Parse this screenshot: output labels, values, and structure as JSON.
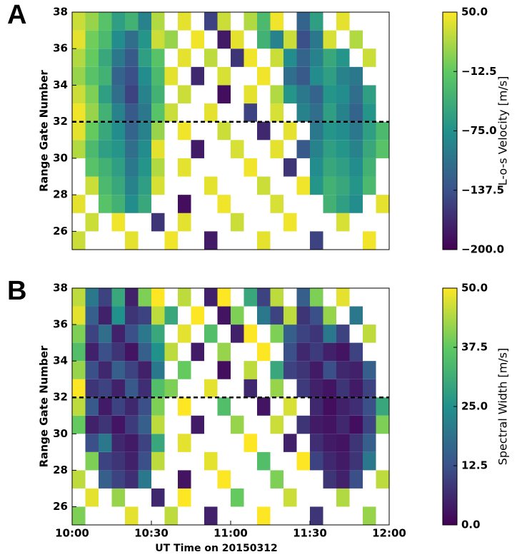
{
  "chart_data": [
    {
      "type": "heatmap",
      "panel_label": "A",
      "ylabel": "Range Gate Number",
      "colorbar_label": "L-o-s Velocity [m/s]",
      "colormap": "viridis",
      "clim": [
        -200,
        50
      ],
      "colorbar_ticks": [
        {
          "value": 50,
          "label": "50.0"
        },
        {
          "value": -12.5,
          "label": "−12.5"
        },
        {
          "value": -75,
          "label": "−75.0"
        },
        {
          "value": -137.5,
          "label": "−137.5"
        },
        {
          "value": -200,
          "label": "−200.0"
        }
      ],
      "xlim": [
        "10:00",
        "12:00"
      ],
      "ylim": [
        25,
        38
      ],
      "yticks": [
        26,
        28,
        30,
        32,
        34,
        36,
        38
      ],
      "hline": 32,
      "x": [
        "10:00",
        "10:05",
        "10:10",
        "10:15",
        "10:20",
        "10:25",
        "10:30",
        "10:35",
        "10:40",
        "10:45",
        "10:50",
        "10:55",
        "11:00",
        "11:05",
        "11:10",
        "11:15",
        "11:20",
        "11:25",
        "11:30",
        "11:35",
        "11:40",
        "11:45",
        "11:50",
        "11:55"
      ],
      "y": [
        25,
        26,
        27,
        28,
        29,
        30,
        31,
        32,
        33,
        34,
        35,
        36,
        37
      ],
      "z": [
        [
          30,
          null,
          null,
          null,
          40,
          null,
          null,
          45,
          null,
          null,
          -180,
          null,
          null,
          null,
          40,
          null,
          null,
          null,
          -150,
          null,
          null,
          null,
          45,
          null
        ],
        [
          null,
          30,
          null,
          45,
          null,
          null,
          -160,
          null,
          40,
          null,
          null,
          null,
          30,
          null,
          null,
          null,
          45,
          null,
          null,
          null,
          35,
          null,
          null,
          null
        ],
        [
          40,
          null,
          -20,
          -40,
          -80,
          -50,
          null,
          null,
          -190,
          null,
          null,
          45,
          null,
          null,
          null,
          35,
          null,
          null,
          null,
          -40,
          -60,
          -80,
          null,
          40
        ],
        [
          null,
          30,
          -30,
          -50,
          -90,
          -60,
          35,
          null,
          null,
          null,
          40,
          null,
          null,
          null,
          30,
          null,
          null,
          45,
          -70,
          -40,
          -50,
          -70,
          -30,
          null
        ],
        [
          null,
          -20,
          -40,
          -60,
          -100,
          -70,
          20,
          null,
          40,
          null,
          null,
          null,
          null,
          45,
          null,
          null,
          -160,
          null,
          -80,
          -50,
          -60,
          -80,
          -40,
          null
        ],
        [
          20,
          -30,
          -60,
          -70,
          -110,
          -80,
          40,
          null,
          null,
          -180,
          null,
          null,
          35,
          null,
          null,
          40,
          null,
          -130,
          -90,
          -60,
          -70,
          -90,
          -50,
          -20
        ],
        [
          40,
          -10,
          -50,
          -80,
          -120,
          -90,
          10,
          null,
          45,
          null,
          null,
          30,
          null,
          null,
          -170,
          null,
          40,
          null,
          -100,
          -70,
          -80,
          -100,
          -60,
          -30
        ],
        [
          45,
          10,
          -40,
          -90,
          -130,
          -100,
          -20,
          30,
          null,
          null,
          40,
          null,
          null,
          -150,
          null,
          35,
          null,
          -90,
          -110,
          -60,
          -90,
          -120,
          -70,
          null
        ],
        [
          30,
          0,
          -60,
          -110,
          -150,
          -90,
          -40,
          null,
          30,
          null,
          null,
          -190,
          null,
          40,
          null,
          20,
          -70,
          -100,
          -120,
          -70,
          -80,
          -110,
          -60,
          null
        ],
        [
          10,
          -20,
          -40,
          -120,
          -140,
          -80,
          -30,
          40,
          null,
          -170,
          null,
          35,
          null,
          null,
          45,
          null,
          -110,
          -130,
          -80,
          -60,
          -90,
          -100,
          null,
          null
        ],
        [
          20,
          -10,
          -50,
          -100,
          -130,
          -60,
          -20,
          null,
          40,
          null,
          25,
          null,
          -160,
          45,
          null,
          30,
          -80,
          -120,
          -90,
          -50,
          -70,
          null,
          30,
          null
        ],
        [
          40,
          -5,
          -30,
          -80,
          -110,
          -70,
          30,
          10,
          null,
          45,
          null,
          -180,
          40,
          null,
          -40,
          -90,
          30,
          -140,
          -100,
          35,
          null,
          20,
          null,
          null
        ],
        [
          30,
          10,
          -20,
          -60,
          -40,
          -90,
          20,
          null,
          40,
          null,
          -150,
          30,
          null,
          20,
          -30,
          45,
          null,
          -120,
          -60,
          null,
          40,
          null,
          null,
          null
        ]
      ]
    },
    {
      "type": "heatmap",
      "panel_label": "B",
      "ylabel": "Range Gate Number",
      "colorbar_label": "Spectral Width [m/s]",
      "xlabel": "UT Time on 20150312",
      "colormap": "viridis",
      "clim": [
        0,
        50
      ],
      "colorbar_ticks": [
        {
          "value": 50,
          "label": "50.0"
        },
        {
          "value": 37.5,
          "label": "37.5"
        },
        {
          "value": 25,
          "label": "25.0"
        },
        {
          "value": 12.5,
          "label": "12.5"
        },
        {
          "value": 0,
          "label": "0.0"
        }
      ],
      "xlim": [
        "10:00",
        "12:00"
      ],
      "xticks": [
        "10:00",
        "10:30",
        "11:00",
        "11:30",
        "12:00"
      ],
      "ylim": [
        25,
        38
      ],
      "yticks": [
        26,
        28,
        30,
        32,
        34,
        36,
        38
      ],
      "hline": 32,
      "x": [
        "10:00",
        "10:05",
        "10:10",
        "10:15",
        "10:20",
        "10:25",
        "10:30",
        "10:35",
        "10:40",
        "10:45",
        "10:50",
        "10:55",
        "11:00",
        "11:05",
        "11:10",
        "11:15",
        "11:20",
        "11:25",
        "11:30",
        "11:35",
        "11:40",
        "11:45",
        "11:50",
        "11:55"
      ],
      "y": [
        25,
        26,
        27,
        28,
        29,
        30,
        31,
        32,
        33,
        34,
        35,
        36,
        37
      ],
      "z": [
        [
          40,
          null,
          null,
          null,
          48,
          null,
          null,
          45,
          null,
          null,
          5,
          null,
          null,
          null,
          50,
          null,
          null,
          null,
          8,
          null,
          null,
          null,
          42,
          null
        ],
        [
          null,
          48,
          null,
          42,
          null,
          null,
          6,
          null,
          50,
          null,
          null,
          null,
          38,
          null,
          null,
          null,
          46,
          null,
          null,
          null,
          44,
          null,
          null,
          null
        ],
        [
          45,
          null,
          15,
          10,
          7,
          20,
          null,
          null,
          3,
          null,
          null,
          50,
          null,
          null,
          null,
          40,
          null,
          null,
          null,
          8,
          5,
          12,
          null,
          45
        ],
        [
          null,
          40,
          10,
          8,
          5,
          12,
          45,
          null,
          null,
          null,
          48,
          null,
          null,
          null,
          35,
          null,
          null,
          50,
          10,
          6,
          4,
          8,
          20,
          null
        ],
        [
          null,
          12,
          20,
          6,
          4,
          10,
          30,
          null,
          48,
          null,
          null,
          null,
          null,
          50,
          null,
          null,
          5,
          null,
          7,
          4,
          3,
          8,
          15,
          null
        ],
        [
          38,
          5,
          8,
          3,
          9,
          15,
          45,
          null,
          null,
          4,
          null,
          null,
          42,
          null,
          null,
          46,
          null,
          8,
          4,
          3,
          6,
          2,
          10,
          40
        ],
        [
          45,
          14,
          4,
          10,
          6,
          12,
          40,
          null,
          50,
          null,
          null,
          35,
          null,
          null,
          3,
          null,
          47,
          null,
          6,
          2,
          5,
          7,
          12,
          30
        ],
        [
          50,
          8,
          10,
          5,
          14,
          7,
          35,
          40,
          null,
          null,
          48,
          null,
          null,
          6,
          null,
          42,
          null,
          9,
          5,
          3,
          8,
          4,
          10,
          null
        ],
        [
          42,
          12,
          6,
          15,
          10,
          5,
          20,
          null,
          38,
          null,
          null,
          2,
          null,
          45,
          null,
          30,
          10,
          8,
          4,
          12,
          6,
          5,
          15,
          null
        ],
        [
          35,
          5,
          12,
          8,
          3,
          15,
          25,
          45,
          null,
          4,
          null,
          42,
          null,
          null,
          50,
          null,
          12,
          6,
          9,
          5,
          3,
          10,
          null,
          null
        ],
        [
          40,
          10,
          18,
          5,
          12,
          20,
          30,
          null,
          48,
          null,
          35,
          null,
          5,
          50,
          null,
          40,
          15,
          10,
          8,
          20,
          10,
          null,
          45,
          null
        ],
        [
          48,
          15,
          5,
          25,
          8,
          10,
          45,
          30,
          null,
          50,
          null,
          3,
          40,
          null,
          20,
          10,
          45,
          8,
          12,
          42,
          null,
          20,
          null,
          null
        ],
        [
          45,
          20,
          10,
          30,
          5,
          40,
          50,
          null,
          45,
          null,
          5,
          50,
          null,
          30,
          10,
          45,
          null,
          15,
          40,
          null,
          48,
          null,
          null,
          null
        ]
      ]
    }
  ]
}
